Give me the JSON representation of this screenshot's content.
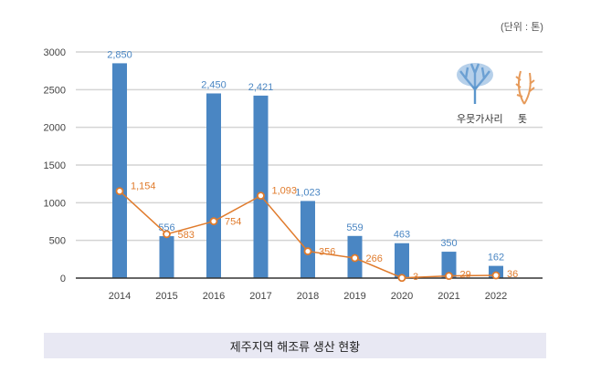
{
  "chart_data": {
    "type": "bar+line",
    "unit_label": "(단위 : 톤)",
    "caption": "제주지역 해조류 생산 현황",
    "categories": [
      "2014",
      "2015",
      "2016",
      "2017",
      "2018",
      "2019",
      "2020",
      "2021",
      "2022"
    ],
    "ylim": [
      0,
      3000
    ],
    "yticks": [
      0,
      500,
      1000,
      1500,
      2000,
      2500,
      3000
    ],
    "grid": true,
    "legend_position": "top-right",
    "series": [
      {
        "name": "우뭇가사리",
        "kind": "bar",
        "color": "#4a86c3",
        "values": [
          2850,
          556,
          2450,
          2421,
          1023,
          559,
          463,
          350,
          162
        ],
        "labels": [
          "2,850",
          "556",
          "2,450",
          "2,421",
          "1,023",
          "559",
          "463",
          "350",
          "162"
        ]
      },
      {
        "name": "톳",
        "kind": "line",
        "color": "#e07b2c",
        "values": [
          1154,
          583,
          754,
          1093,
          356,
          266,
          3,
          29,
          36
        ],
        "labels": [
          "1,154",
          "583",
          "754",
          "1,093",
          "356",
          "266",
          "3",
          "29",
          "36"
        ]
      }
    ]
  }
}
